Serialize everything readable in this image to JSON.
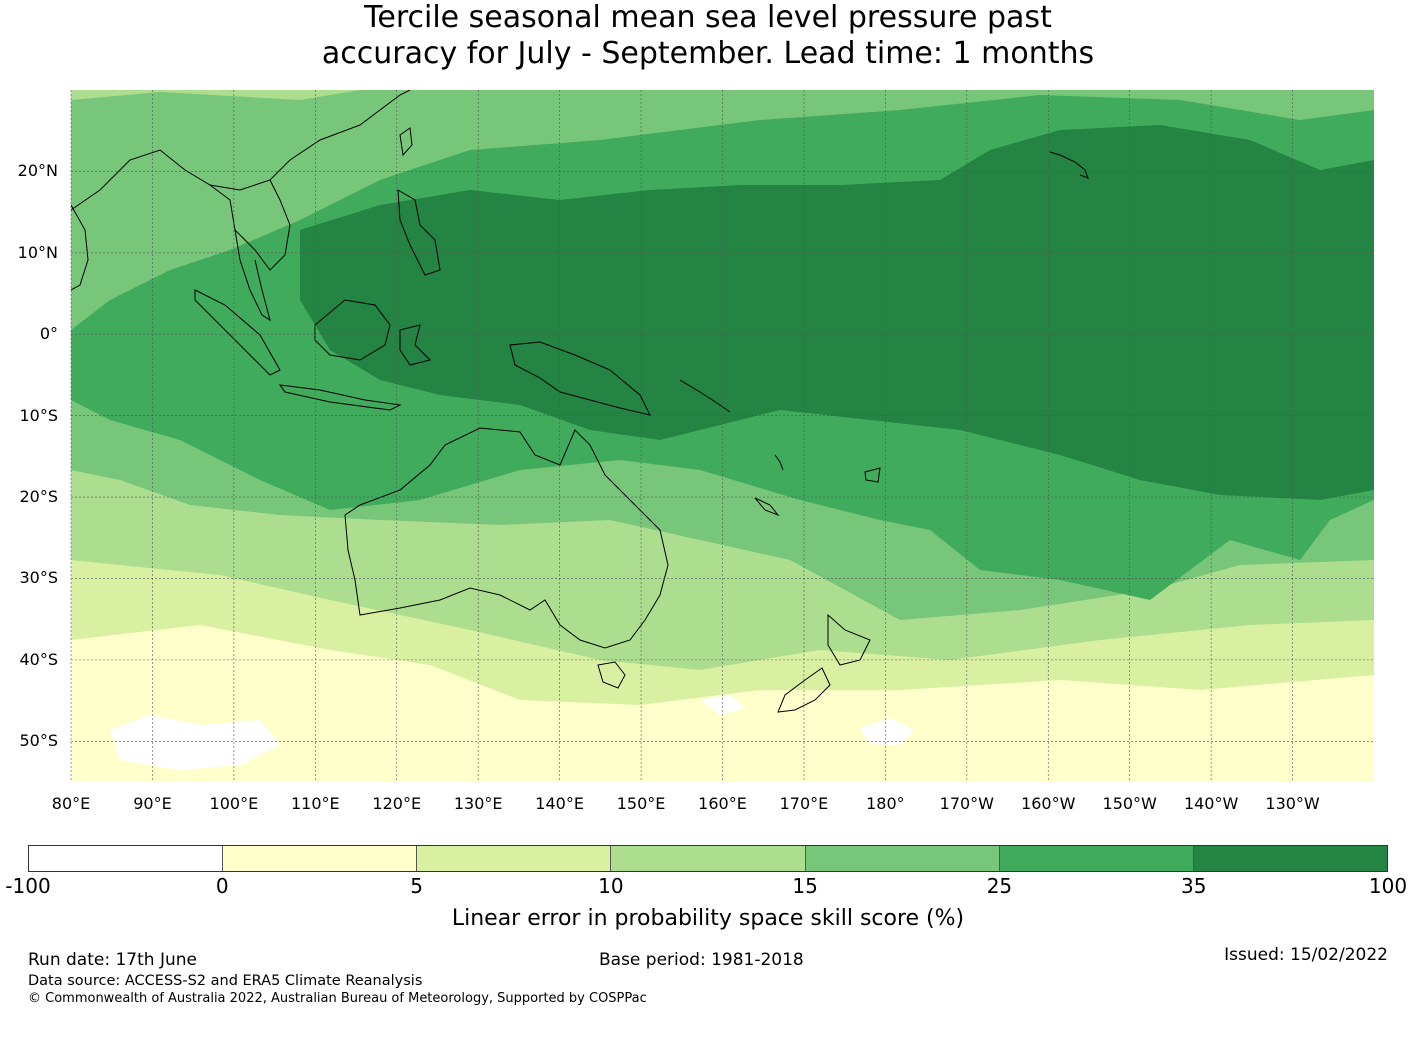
{
  "title": {
    "line1": "Tercile seasonal mean sea level pressure past",
    "line2": "accuracy for July - September. Lead time: 1 months"
  },
  "map": {
    "lon_range": [
      80,
      240
    ],
    "lat_range": [
      -55,
      30
    ],
    "lat_labels": [
      {
        "lat": 20,
        "text": "20°N"
      },
      {
        "lat": 10,
        "text": "10°N"
      },
      {
        "lat": 0,
        "text": "0°"
      },
      {
        "lat": -10,
        "text": "10°S"
      },
      {
        "lat": -20,
        "text": "20°S"
      },
      {
        "lat": -30,
        "text": "30°S"
      },
      {
        "lat": -40,
        "text": "40°S"
      },
      {
        "lat": -50,
        "text": "50°S"
      }
    ],
    "lon_labels": [
      {
        "lon": 80,
        "text": "80°E"
      },
      {
        "lon": 90,
        "text": "90°E"
      },
      {
        "lon": 100,
        "text": "100°E"
      },
      {
        "lon": 110,
        "text": "110°E"
      },
      {
        "lon": 120,
        "text": "120°E"
      },
      {
        "lon": 130,
        "text": "130°E"
      },
      {
        "lon": 140,
        "text": "140°E"
      },
      {
        "lon": 150,
        "text": "150°E"
      },
      {
        "lon": 160,
        "text": "160°E"
      },
      {
        "lon": 170,
        "text": "170°E"
      },
      {
        "lon": 180,
        "text": "180°"
      },
      {
        "lon": 190,
        "text": "170°W"
      },
      {
        "lon": 200,
        "text": "160°W"
      },
      {
        "lon": 210,
        "text": "150°W"
      },
      {
        "lon": 220,
        "text": "140°W"
      },
      {
        "lon": 230,
        "text": "130°W"
      }
    ],
    "grid_lines": true,
    "grid_color": "#555555"
  },
  "colorbar": {
    "ticks": [
      "-100",
      "0",
      "5",
      "10",
      "15",
      "25",
      "35",
      "100"
    ],
    "colors": [
      "#ffffff",
      "#ffffcc",
      "#d9f0a3",
      "#addd8e",
      "#78c679",
      "#41ab5d",
      "#238443"
    ],
    "label": "Linear error in probability space skill score (%)"
  },
  "footer": {
    "run_date": "Run date: 17th June",
    "base_period": "Base period: 1981-2018",
    "issued": "Issued: 15/02/2022",
    "data_source": "Data source: ACCESS-S2 and ERA5 Climate Reanalysis",
    "copyright": "© Commonwealth of Australia 2022, Australian Bureau of Meteorology, Supported by COSPPac"
  }
}
